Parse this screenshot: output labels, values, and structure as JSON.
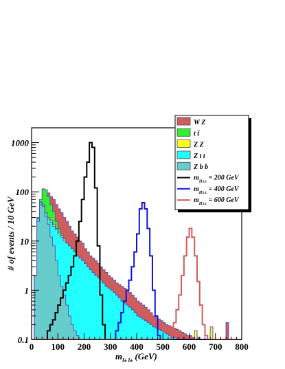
{
  "chart_data": {
    "type": "histogram",
    "xlabel": "m",
    "xlabel_sub": "l± l±",
    "xlabel_unit": "(GeV)",
    "ylabel": "# of events / 10 GeV",
    "xlim": [
      0,
      800
    ],
    "ylim": [
      0.1,
      2000
    ],
    "yscale": "log",
    "bin_width": 10,
    "x_ticks": [
      "0",
      "100",
      "200",
      "300",
      "400",
      "500",
      "600",
      "700",
      "800"
    ],
    "y_ticks": [
      {
        "value": 0.1,
        "label": "0.1"
      },
      {
        "value": 1,
        "label": "1"
      },
      {
        "value": 10,
        "label": "10"
      },
      {
        "value": 100,
        "label": "100"
      },
      {
        "value": 1000,
        "label": "1000"
      }
    ],
    "legend_position": "top-right",
    "stacked_series": [
      {
        "name": "W Z",
        "color": "#d15c5c",
        "values": [
          0.1,
          2,
          30,
          70,
          115,
          110,
          95,
          80,
          70,
          55,
          45,
          38,
          30,
          25,
          20,
          16,
          14,
          12,
          10,
          9,
          7,
          6,
          5,
          4.5,
          4,
          3.5,
          3,
          2.6,
          2.3,
          2,
          1.8,
          1.6,
          1.4,
          1.3,
          1.2,
          1.1,
          1,
          0.9,
          0.8,
          0.7,
          0.6,
          0.55,
          0.5,
          0.45,
          0.4,
          0.35,
          0.3,
          0.28,
          0.26,
          0.24,
          0.22,
          0.2,
          0.19,
          0.18,
          0.17,
          0.16,
          0.15,
          0.14,
          0.13,
          0.12,
          0.12,
          0.11,
          0.11,
          0.11,
          0.1,
          0.1,
          0.1,
          0.1,
          0.1,
          0.1,
          0.1,
          0.1,
          0.1,
          0.1,
          0.22,
          0.1,
          0.1,
          0.1,
          0.1,
          0.1
        ]
      },
      {
        "name": "t t̄",
        "color": "#33ee33",
        "values": [
          0.1,
          2,
          30,
          70,
          115,
          110,
          80,
          55,
          40,
          25,
          18,
          14,
          11,
          9,
          8,
          7,
          6,
          5,
          4.5,
          4,
          3.5,
          3,
          2.6,
          2.3,
          2,
          1.8,
          1.6,
          1.4,
          1.2,
          1.1,
          1,
          0.9,
          0.8,
          0.7,
          0.6,
          0.55,
          0.5,
          0.45,
          0.4,
          0.35,
          0.3,
          0.28,
          0.26,
          0.24,
          0.22,
          0.2,
          0.18,
          0.17,
          0.16,
          0.15,
          0.14,
          0.13,
          0.12,
          0.11,
          0.11,
          0.1,
          0.1,
          0.1,
          0.1,
          0.1,
          0.1,
          0.1,
          0.1,
          0.1,
          0.1,
          0.1,
          0.1,
          0.1,
          0.1,
          0.1,
          0.1,
          0.1,
          0.1,
          0.1,
          0.1,
          0.1,
          0.1,
          0.1,
          0.1,
          0.1
        ]
      },
      {
        "name": "Z Z",
        "color": "#ffff22",
        "values": [
          0.1,
          2,
          28,
          62,
          55,
          38,
          30,
          26,
          22,
          18,
          15,
          13,
          11,
          9,
          8,
          7,
          6,
          5,
          4.5,
          4,
          3.5,
          3,
          2.6,
          2.3,
          2,
          1.8,
          1.6,
          1.4,
          1.2,
          1.1,
          1,
          0.9,
          0.8,
          0.7,
          0.6,
          0.55,
          0.5,
          0.45,
          0.4,
          0.35,
          0.3,
          0.28,
          0.26,
          0.24,
          0.22,
          0.2,
          0.18,
          0.17,
          0.16,
          0.15,
          0.14,
          0.13,
          0.12,
          0.11,
          0.11,
          0.1,
          0.1,
          0.1,
          0.1,
          0.1,
          0.1,
          0.1,
          0.15,
          0.1,
          0.1,
          0.1,
          0.1,
          0.1,
          0.18,
          0.1,
          0.1,
          0.1,
          0.1,
          0.1,
          0.1,
          0.1,
          0.1,
          0.1,
          0.1,
          0.1
        ]
      },
      {
        "name": "Z t t",
        "color": "#22ffff",
        "values": [
          0.1,
          2,
          28,
          60,
          52,
          36,
          28,
          24,
          20,
          17,
          14,
          12,
          10,
          9,
          8,
          7,
          6,
          5,
          4.5,
          4,
          3.5,
          3,
          2.6,
          2.3,
          2,
          1.8,
          1.6,
          1.4,
          1.2,
          1.1,
          1,
          0.9,
          0.8,
          0.7,
          0.6,
          0.55,
          0.5,
          0.45,
          0.4,
          0.35,
          0.3,
          0.28,
          0.26,
          0.24,
          0.22,
          0.2,
          0.18,
          0.17,
          0.16,
          0.15,
          0.14,
          0.13,
          0.12,
          0.11,
          0.11,
          0.1,
          0.1,
          0.1,
          0.1,
          0.1,
          0.1,
          0.1,
          0.1,
          0.1,
          0.1,
          0.1,
          0.1,
          0.1,
          0.1,
          0.1,
          0.1,
          0.1,
          0.1,
          0.1,
          0.1,
          0.1,
          0.1,
          0.1,
          0.1,
          0.1
        ]
      },
      {
        "name": "Z b b",
        "color": "#66cccc",
        "values": [
          0.1,
          2,
          25,
          55,
          50,
          32,
          22,
          12,
          8,
          4,
          2,
          1.2,
          0.8,
          0.5,
          0.3,
          0.2,
          0.15,
          0.12,
          0.1,
          0.1,
          0.1,
          0.1,
          0.1,
          0.1,
          0.1,
          0.1,
          0.1,
          0.1,
          0.1,
          0.1,
          0.1,
          0.1,
          0.1,
          0.1,
          0.1,
          0.1,
          0.1,
          0.1,
          0.1,
          0.1,
          0.1,
          0.1,
          0.1,
          0.1,
          0.1,
          0.1,
          0.1,
          0.1,
          0.1,
          0.1,
          0.1,
          0.1,
          0.1,
          0.1,
          0.1,
          0.1,
          0.1,
          0.1,
          0.1,
          0.1,
          0.1,
          0.1,
          0.1,
          0.1,
          0.1,
          0.1,
          0.1,
          0.1,
          0.1,
          0.1,
          0.1,
          0.1,
          0.1,
          0.1,
          0.1,
          0.1,
          0.1,
          0.1,
          0.1,
          0.1
        ]
      }
    ],
    "line_series": [
      {
        "name": "m_H±± = 200 GeV",
        "legend_sub": "H±±",
        "legend_rest": " = 200 GeV",
        "color": "#000000",
        "values": [
          0.1,
          0.1,
          0.1,
          0.1,
          0.1,
          0.1,
          0.15,
          0.2,
          0.25,
          0.35,
          0.5,
          0.7,
          1,
          1.4,
          2,
          3,
          5,
          10,
          25,
          70,
          200,
          400,
          1000,
          800,
          120,
          8,
          0.8,
          0.2,
          0.1,
          0.1,
          0.1,
          0.1,
          0.1,
          0.1,
          0.1,
          0.1,
          0.1,
          0.1,
          0.1,
          0.1,
          0.1,
          0.1,
          0.1,
          0.1,
          0.1,
          0.1,
          0.1,
          0.1,
          0.1,
          0.1,
          0.1,
          0.1,
          0.1,
          0.1,
          0.1,
          0.1,
          0.1,
          0.1,
          0.1,
          0.1,
          0.1,
          0.1,
          0.1,
          0.1,
          0.1,
          0.1,
          0.1,
          0.1,
          0.1,
          0.1,
          0.1,
          0.1,
          0.1,
          0.1,
          0.1,
          0.1,
          0.1,
          0.1,
          0.1,
          0.1
        ]
      },
      {
        "name": "m_H±± = 400 GeV",
        "legend_sub": "H±±",
        "legend_rest": " = 400 GeV",
        "color": "#1111dd",
        "values": [
          0.1,
          0.1,
          0.1,
          0.1,
          0.1,
          0.1,
          0.1,
          0.1,
          0.1,
          0.1,
          0.1,
          0.1,
          0.1,
          0.1,
          0.1,
          0.1,
          0.1,
          0.1,
          0.1,
          0.1,
          0.1,
          0.1,
          0.1,
          0.1,
          0.1,
          0.1,
          0.1,
          0.1,
          0.1,
          0.1,
          0.1,
          0.1,
          0.15,
          0.22,
          0.35,
          0.6,
          1,
          1.6,
          3,
          6,
          14,
          45,
          60,
          45,
          18,
          5,
          1,
          0.3,
          0.12,
          0.1,
          0.1,
          0.1,
          0.1,
          0.1,
          0.1,
          0.1,
          0.1,
          0.1,
          0.1,
          0.1,
          0.1,
          0.1,
          0.1,
          0.1,
          0.1,
          0.1,
          0.1,
          0.1,
          0.1,
          0.1,
          0.1,
          0.1,
          0.1,
          0.1,
          0.1,
          0.1,
          0.1,
          0.1,
          0.1,
          0.1
        ]
      },
      {
        "name": "m_H±± = 600 GeV",
        "legend_sub": "H±±",
        "legend_rest": " = 600 GeV",
        "color": "#d15c5c",
        "values": [
          0.1,
          0.1,
          0.1,
          0.1,
          0.1,
          0.1,
          0.1,
          0.1,
          0.1,
          0.1,
          0.1,
          0.1,
          0.1,
          0.1,
          0.1,
          0.1,
          0.1,
          0.1,
          0.1,
          0.1,
          0.1,
          0.1,
          0.1,
          0.1,
          0.1,
          0.1,
          0.1,
          0.1,
          0.1,
          0.1,
          0.1,
          0.1,
          0.1,
          0.1,
          0.1,
          0.1,
          0.1,
          0.1,
          0.1,
          0.1,
          0.1,
          0.1,
          0.1,
          0.1,
          0.1,
          0.1,
          0.1,
          0.1,
          0.1,
          0.1,
          0.1,
          0.1,
          0.1,
          0.15,
          0.22,
          0.4,
          0.8,
          2,
          5,
          12,
          18,
          12,
          5,
          1.5,
          0.5,
          0.2,
          0.12,
          0.1,
          0.1,
          0.1,
          0.1,
          0.1,
          0.1,
          0.1,
          0.1,
          0.1,
          0.1,
          0.1,
          0.1,
          0.1
        ]
      }
    ]
  }
}
